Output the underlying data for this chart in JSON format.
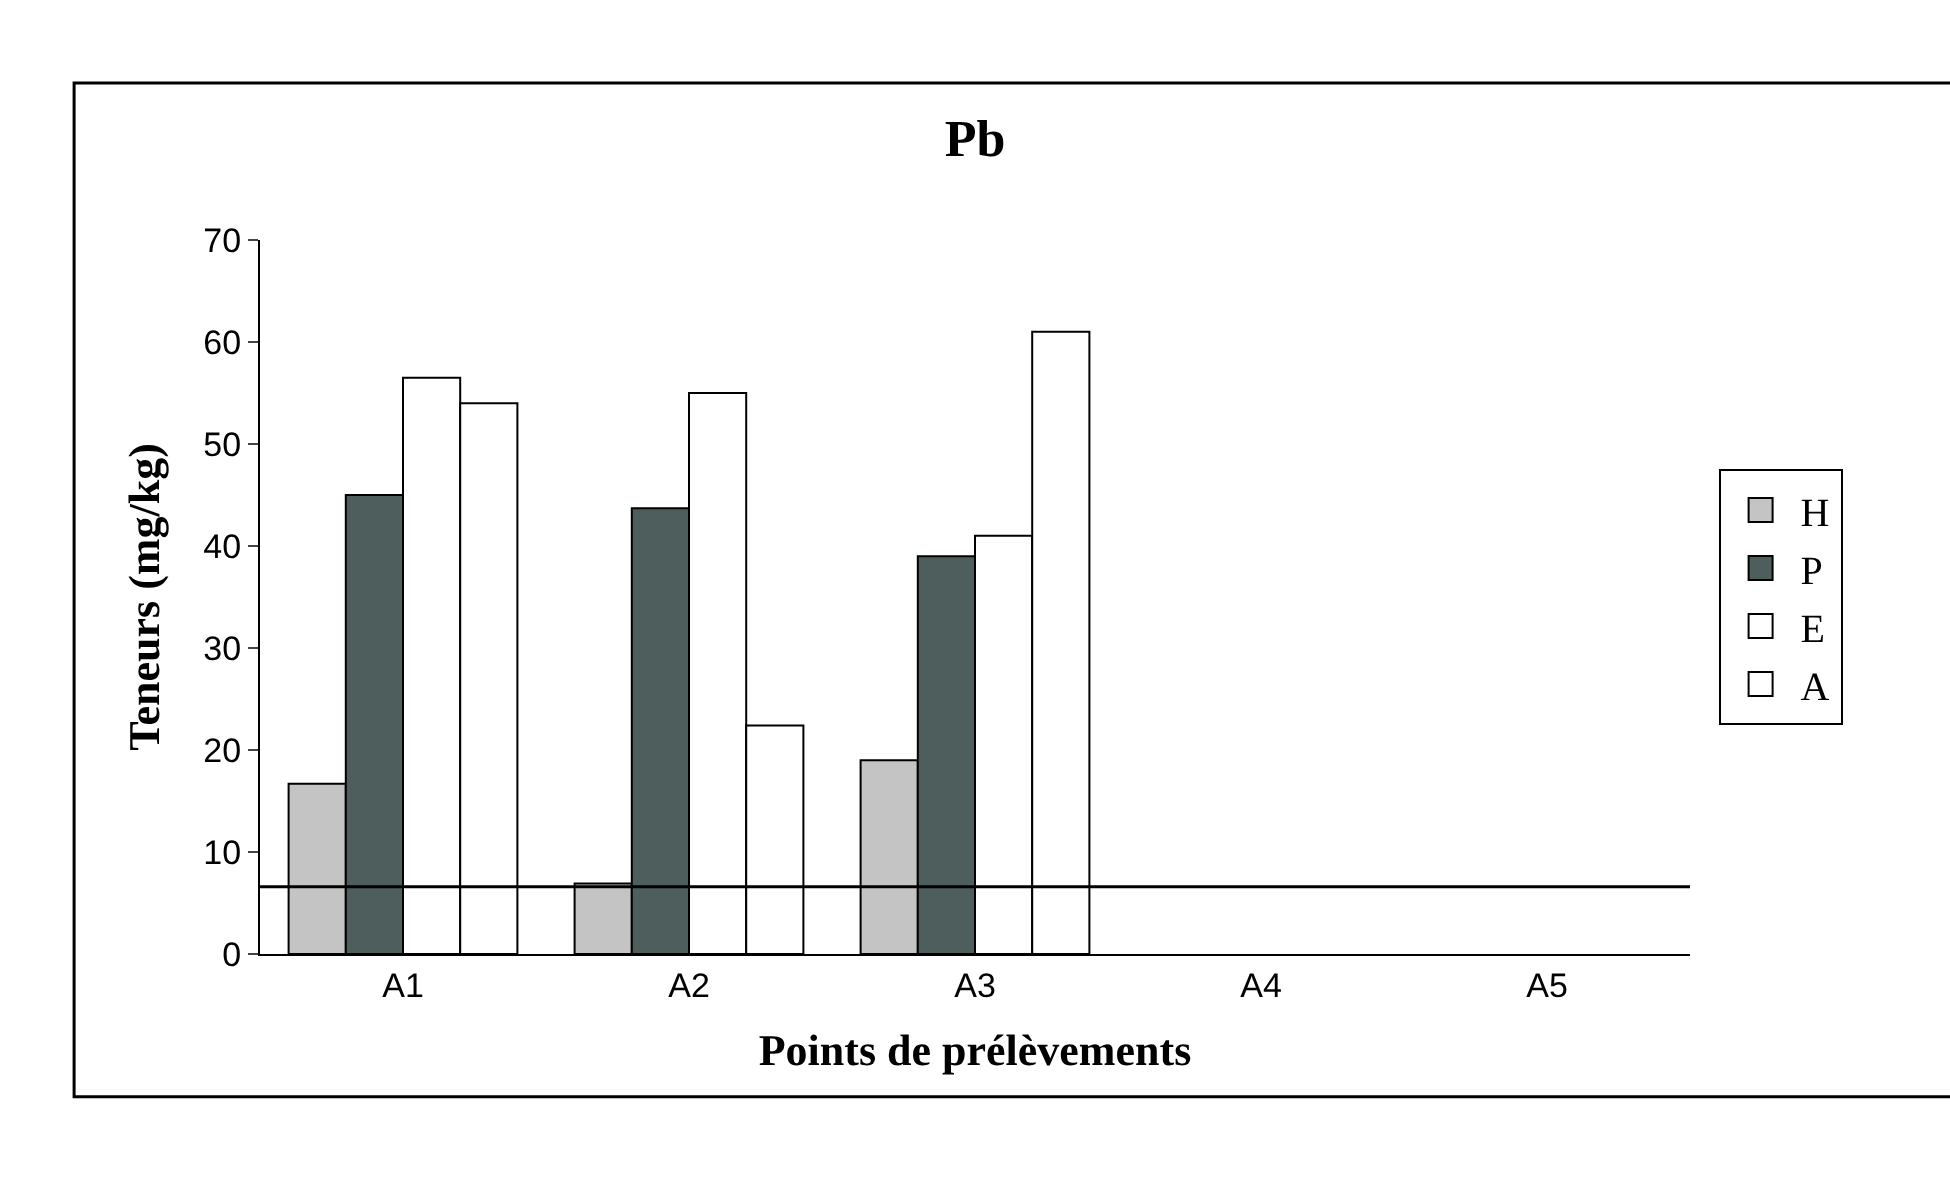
{
  "chart_data": {
    "type": "bar",
    "title": "Pb",
    "xlabel": "Points de prélèvements",
    "ylabel": "Teneurs (mg/kg)",
    "categories": [
      "A1",
      "A2",
      "A3",
      "A4",
      "A5"
    ],
    "series": [
      {
        "name": "H",
        "color": "#c4c4c4",
        "values": [
          16.7,
          6.9,
          19,
          null,
          null
        ]
      },
      {
        "name": "P",
        "color": "#4e5e5c",
        "values": [
          45,
          43.7,
          39,
          null,
          null
        ]
      },
      {
        "name": "E",
        "color": "#ffffff",
        "values": [
          56.5,
          55,
          41,
          null,
          null
        ]
      },
      {
        "name": "A",
        "color": "#ffffff",
        "values": [
          54,
          22.4,
          61,
          null,
          null
        ]
      }
    ],
    "ylim": [
      0,
      70
    ],
    "yticks": [
      0,
      10,
      20,
      30,
      40,
      50,
      60,
      70
    ],
    "grid": false,
    "legend": "right",
    "ref_lines": [
      {
        "axis": "y",
        "value": 6.6,
        "color": "#000000"
      }
    ]
  }
}
